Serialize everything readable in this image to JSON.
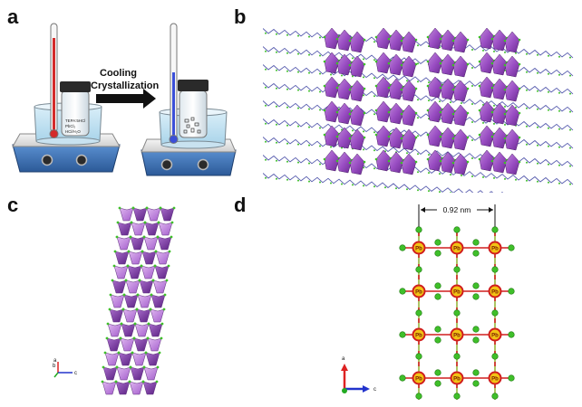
{
  "panels": {
    "a": {
      "label": "a",
      "arrow_text_line1": "Cooling",
      "arrow_text_line2": "Crystallization",
      "beaker_label_line1": "TEPA:5HCl",
      "beaker_label_line2": "PbCl₂",
      "beaker_label_line3": "HCl/H₂O"
    },
    "b": {
      "label": "b"
    },
    "c": {
      "label": "c",
      "axes": {
        "a": "a",
        "b": "b",
        "c": "c"
      }
    },
    "d": {
      "label": "d",
      "dimension_text": "0.92 nm",
      "atom_label": "Pb",
      "axes": {
        "a": "a",
        "c": "c"
      }
    }
  },
  "colors": {
    "octahedron_purple": "#9b4fc4",
    "octahedron_dark": "#6a2a92",
    "chlorine_green": "#3fbf2a",
    "lead_red": "#d01e1e",
    "lead_yellow": "#f2c314",
    "hotplate_blue": "#3f74b8",
    "cold_thermo": "#3b4fd8",
    "hot_thermo": "#d32b2b"
  }
}
